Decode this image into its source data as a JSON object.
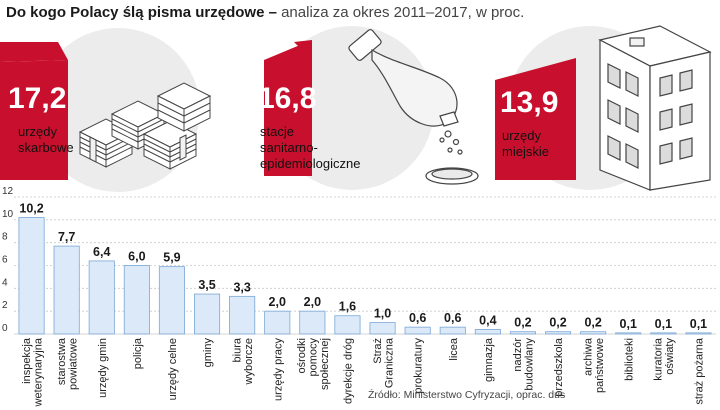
{
  "header": {
    "title": "Do kogo Polacy ślą pisma urzędowe",
    "dash": " – ",
    "subtitle": "analiza za okres 2011–2017, w proc."
  },
  "highlights": [
    {
      "value": "17,2",
      "label_lines": [
        "urzędy",
        "skarbowe"
      ],
      "icon": "stacked-papers-icon"
    },
    {
      "value": "16,8",
      "label_lines": [
        "stacje",
        "sanitarno-",
        "epidemiologiczne"
      ],
      "icon": "flask-icon"
    },
    {
      "value": "13,9",
      "label_lines": [
        "urzędy",
        "miejskie"
      ],
      "icon": "building-icon"
    }
  ],
  "colors": {
    "accent": "#c8102e",
    "bar_fill": "#dbe9f8",
    "bar_stroke": "#7aa7d6",
    "grid": "#c9c9c9",
    "circle": "#ececec"
  },
  "chart_data": {
    "type": "bar",
    "categories": [
      [
        "inspekcja",
        "weterynaryjna"
      ],
      [
        "starostwa",
        "powiatowe"
      ],
      [
        "urzędy gmin"
      ],
      [
        "policja"
      ],
      [
        "urzędy celne"
      ],
      [
        "gminy"
      ],
      [
        "biura",
        "wyborcze"
      ],
      [
        "urzędy pracy"
      ],
      [
        "ośrodki",
        "pomocy",
        "społecznej"
      ],
      [
        "dyrekcje dróg"
      ],
      [
        "Straż",
        "Graniczna"
      ],
      [
        "prokuratury"
      ],
      [
        "licea"
      ],
      [
        "gimnazja"
      ],
      [
        "nadzór",
        "budowlany"
      ],
      [
        "przedszkola"
      ],
      [
        "archiwa",
        "państwowe"
      ],
      [
        "biblioteki"
      ],
      [
        "kuratoria",
        "oświaty"
      ],
      [
        "straż pożarna"
      ]
    ],
    "values": [
      10.2,
      7.7,
      6.4,
      6.0,
      5.9,
      3.5,
      3.3,
      2.0,
      2.0,
      1.6,
      1.0,
      0.6,
      0.6,
      0.4,
      0.2,
      0.2,
      0.2,
      0.1,
      0.1,
      0.1
    ],
    "value_labels": [
      "10,2",
      "7,7",
      "6,4",
      "6,0",
      "5,9",
      "3,5",
      "3,3",
      "2,0",
      "2,0",
      "1,6",
      "1,0",
      "0,6",
      "0,6",
      "0,4",
      "0,2",
      "0,2",
      "0,2",
      "0,1",
      "0,1",
      "0,1"
    ],
    "yticks": [
      0,
      2,
      4,
      6,
      8,
      10,
      12
    ],
    "ylim": [
      0,
      12
    ],
    "grid": true,
    "title": "",
    "xlabel": "",
    "ylabel": ""
  },
  "source": "Źródło: Ministerstwo Cyfryzacji, oprac. dus"
}
